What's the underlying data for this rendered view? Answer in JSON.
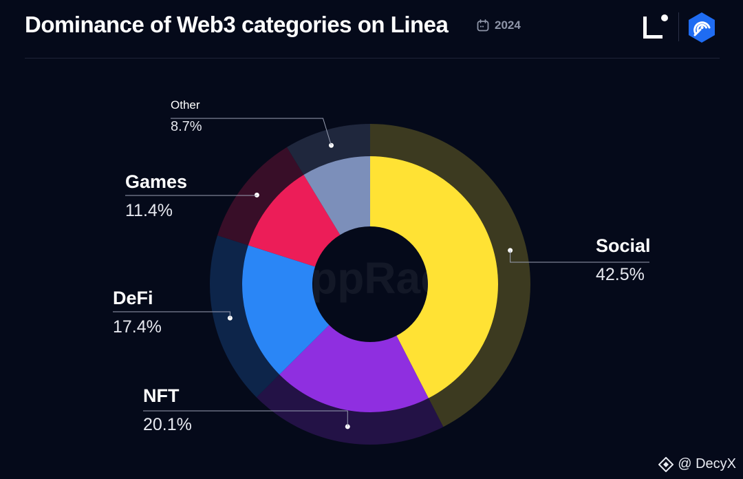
{
  "header": {
    "title": "Dominance of Web3 categories on Linea",
    "year": "2024"
  },
  "watermark": {
    "text": "DappRadar"
  },
  "footer": {
    "handle": "@ DecyX"
  },
  "colors": {
    "background": "#050a1a",
    "Social": "#ffe234",
    "NFT": "#8f2fe0",
    "DeFi": "#2a86f6",
    "Games": "#ec1d58",
    "Other": "#7c8fba"
  },
  "icons": [
    "calendar-icon",
    "linea-logo-icon",
    "dappradar-logo-icon",
    "binance-square-icon"
  ],
  "chart_data": {
    "type": "pie",
    "title": "Dominance of Web3 categories on Linea",
    "subtitle": "2024",
    "style": "donut with outer halo ring, labels with leader lines",
    "categories": [
      "Social",
      "NFT",
      "DeFi",
      "Games",
      "Other"
    ],
    "values": [
      42.5,
      20.1,
      17.4,
      11.4,
      8.7
    ],
    "value_labels": [
      "42.5%",
      "20.1%",
      "17.4%",
      "11.4%",
      "8.7%"
    ]
  }
}
